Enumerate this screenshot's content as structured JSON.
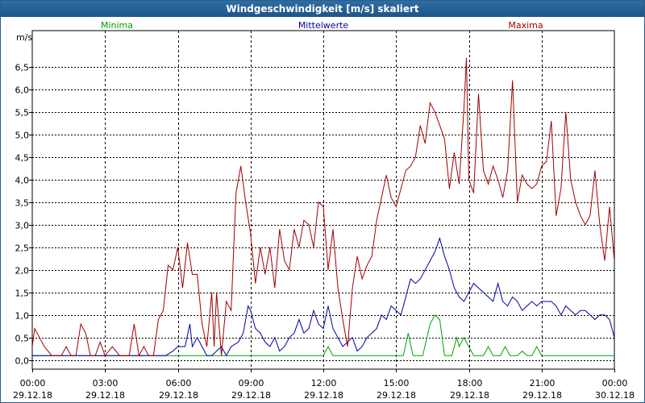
{
  "window": {
    "title": "Windgeschwindigkeit [m/s] skaliert"
  },
  "chart_data": {
    "type": "line",
    "title": "Windgeschwindigkeit [m/s] skaliert",
    "ylabel": "m/s",
    "ylim": [
      -0.2,
      7.3
    ],
    "grid": true,
    "legend_placement": "top",
    "y_ticks": [
      {
        "value": 0.0,
        "label": "0,0"
      },
      {
        "value": 0.5,
        "label": "0,5"
      },
      {
        "value": 1.0,
        "label": "1,0"
      },
      {
        "value": 1.5,
        "label": "1,5"
      },
      {
        "value": 2.0,
        "label": "2,0"
      },
      {
        "value": 2.5,
        "label": "2,5"
      },
      {
        "value": 3.0,
        "label": "3,0"
      },
      {
        "value": 3.5,
        "label": "3,5"
      },
      {
        "value": 4.0,
        "label": "4,0"
      },
      {
        "value": 4.5,
        "label": "4,5"
      },
      {
        "value": 5.0,
        "label": "5,0"
      },
      {
        "value": 5.5,
        "label": "5,5"
      },
      {
        "value": 6.0,
        "label": "6,0"
      },
      {
        "value": 6.5,
        "label": "6,5"
      }
    ],
    "x_ticks": [
      {
        "hour": 0,
        "time": "00:00",
        "date": "29.12.18"
      },
      {
        "hour": 3,
        "time": "03:00",
        "date": "29.12.18"
      },
      {
        "hour": 6,
        "time": "06:00",
        "date": "29.12.18"
      },
      {
        "hour": 9,
        "time": "09:00",
        "date": "29.12.18"
      },
      {
        "hour": 12,
        "time": "12:00",
        "date": "29.12.18"
      },
      {
        "hour": 15,
        "time": "15:00",
        "date": "29.12.18"
      },
      {
        "hour": 18,
        "time": "18:00",
        "date": "29.12.18"
      },
      {
        "hour": 21,
        "time": "21:00",
        "date": "29.12.18"
      },
      {
        "hour": 24,
        "time": "00:00",
        "date": "30.12.18"
      }
    ],
    "series": [
      {
        "name": "Minima",
        "color": "#00a000",
        "points": [
          [
            0,
            0.1
          ],
          [
            6.0,
            0.1
          ],
          [
            12.0,
            0.1
          ],
          [
            12.2,
            0.3
          ],
          [
            12.4,
            0.1
          ],
          [
            15.3,
            0.1
          ],
          [
            15.5,
            0.6
          ],
          [
            15.7,
            0.1
          ],
          [
            16.1,
            0.1
          ],
          [
            16.4,
            0.8
          ],
          [
            16.6,
            1.0
          ],
          [
            16.8,
            0.9
          ],
          [
            17.0,
            0.1
          ],
          [
            17.3,
            0.1
          ],
          [
            17.5,
            0.5
          ],
          [
            17.6,
            0.3
          ],
          [
            17.8,
            0.5
          ],
          [
            18.0,
            0.3
          ],
          [
            18.2,
            0.1
          ],
          [
            18.6,
            0.1
          ],
          [
            18.8,
            0.3
          ],
          [
            19.0,
            0.1
          ],
          [
            19.3,
            0.1
          ],
          [
            19.5,
            0.3
          ],
          [
            19.7,
            0.1
          ],
          [
            20.0,
            0.1
          ],
          [
            20.2,
            0.2
          ],
          [
            20.4,
            0.1
          ],
          [
            20.6,
            0.1
          ],
          [
            20.8,
            0.3
          ],
          [
            21.0,
            0.1
          ],
          [
            24.0,
            0.1
          ]
        ]
      },
      {
        "name": "Mittelwerte",
        "color": "#0000a0",
        "points": [
          [
            0,
            0.1
          ],
          [
            5.5,
            0.1
          ],
          [
            5.8,
            0.2
          ],
          [
            6.0,
            0.3
          ],
          [
            6.3,
            0.3
          ],
          [
            6.5,
            0.8
          ],
          [
            6.6,
            0.3
          ],
          [
            6.8,
            0.5
          ],
          [
            7.0,
            0.3
          ],
          [
            7.2,
            0.1
          ],
          [
            7.4,
            0.1
          ],
          [
            7.6,
            0.2
          ],
          [
            7.8,
            0.3
          ],
          [
            8.0,
            0.1
          ],
          [
            8.2,
            0.3
          ],
          [
            8.5,
            0.4
          ],
          [
            8.7,
            0.6
          ],
          [
            8.9,
            1.2
          ],
          [
            9.0,
            1.1
          ],
          [
            9.2,
            0.7
          ],
          [
            9.4,
            0.6
          ],
          [
            9.6,
            0.4
          ],
          [
            9.8,
            0.3
          ],
          [
            10.0,
            0.5
          ],
          [
            10.2,
            0.2
          ],
          [
            10.4,
            0.3
          ],
          [
            10.6,
            0.5
          ],
          [
            10.8,
            0.6
          ],
          [
            11.0,
            0.9
          ],
          [
            11.2,
            0.6
          ],
          [
            11.4,
            0.7
          ],
          [
            11.6,
            1.1
          ],
          [
            11.8,
            0.8
          ],
          [
            12.0,
            0.7
          ],
          [
            12.2,
            1.2
          ],
          [
            12.4,
            0.7
          ],
          [
            12.6,
            0.5
          ],
          [
            12.8,
            0.3
          ],
          [
            13.0,
            0.4
          ],
          [
            13.2,
            0.5
          ],
          [
            13.4,
            0.2
          ],
          [
            13.6,
            0.3
          ],
          [
            13.8,
            0.5
          ],
          [
            14.0,
            0.6
          ],
          [
            14.2,
            0.7
          ],
          [
            14.4,
            1.0
          ],
          [
            14.6,
            0.9
          ],
          [
            14.8,
            1.2
          ],
          [
            15.0,
            1.1
          ],
          [
            15.2,
            1.0
          ],
          [
            15.4,
            1.4
          ],
          [
            15.6,
            1.8
          ],
          [
            15.8,
            1.7
          ],
          [
            16.0,
            1.8
          ],
          [
            16.2,
            2.0
          ],
          [
            16.4,
            2.2
          ],
          [
            16.6,
            2.4
          ],
          [
            16.8,
            2.7
          ],
          [
            17.0,
            2.3
          ],
          [
            17.2,
            2.0
          ],
          [
            17.4,
            1.6
          ],
          [
            17.6,
            1.4
          ],
          [
            17.8,
            1.3
          ],
          [
            18.0,
            1.5
          ],
          [
            18.2,
            1.7
          ],
          [
            18.4,
            1.6
          ],
          [
            18.6,
            1.5
          ],
          [
            18.8,
            1.4
          ],
          [
            19.0,
            1.3
          ],
          [
            19.2,
            1.7
          ],
          [
            19.4,
            1.3
          ],
          [
            19.6,
            1.2
          ],
          [
            19.8,
            1.4
          ],
          [
            20.0,
            1.3
          ],
          [
            20.2,
            1.1
          ],
          [
            20.4,
            1.2
          ],
          [
            20.6,
            1.3
          ],
          [
            20.8,
            1.2
          ],
          [
            21.0,
            1.3
          ],
          [
            21.2,
            1.3
          ],
          [
            21.4,
            1.3
          ],
          [
            21.6,
            1.2
          ],
          [
            21.8,
            1.0
          ],
          [
            22.0,
            1.2
          ],
          [
            22.2,
            1.1
          ],
          [
            22.4,
            1.0
          ],
          [
            22.6,
            1.1
          ],
          [
            22.8,
            1.1
          ],
          [
            23.0,
            1.0
          ],
          [
            23.2,
            0.9
          ],
          [
            23.4,
            1.0
          ],
          [
            23.6,
            1.0
          ],
          [
            23.8,
            0.9
          ],
          [
            24.0,
            0.5
          ]
        ]
      },
      {
        "name": "Maxima",
        "color": "#a00000",
        "points": [
          [
            0,
            0.3
          ],
          [
            0.1,
            0.7
          ],
          [
            0.3,
            0.5
          ],
          [
            0.5,
            0.3
          ],
          [
            0.8,
            0.1
          ],
          [
            1.2,
            0.1
          ],
          [
            1.4,
            0.3
          ],
          [
            1.6,
            0.1
          ],
          [
            1.8,
            0.1
          ],
          [
            2.0,
            0.8
          ],
          [
            2.2,
            0.6
          ],
          [
            2.4,
            0.1
          ],
          [
            2.6,
            0.1
          ],
          [
            2.8,
            0.4
          ],
          [
            3.0,
            0.1
          ],
          [
            3.3,
            0.3
          ],
          [
            3.6,
            0.1
          ],
          [
            4.0,
            0.1
          ],
          [
            4.2,
            0.8
          ],
          [
            4.4,
            0.1
          ],
          [
            4.6,
            0.3
          ],
          [
            4.8,
            0.1
          ],
          [
            5.0,
            0.1
          ],
          [
            5.2,
            0.9
          ],
          [
            5.4,
            1.1
          ],
          [
            5.6,
            2.1
          ],
          [
            5.8,
            2.0
          ],
          [
            6.0,
            2.5
          ],
          [
            6.2,
            1.6
          ],
          [
            6.4,
            2.6
          ],
          [
            6.6,
            1.9
          ],
          [
            6.8,
            1.9
          ],
          [
            7.0,
            0.8
          ],
          [
            7.2,
            0.3
          ],
          [
            7.4,
            1.5
          ],
          [
            7.5,
            0.3
          ],
          [
            7.6,
            1.5
          ],
          [
            7.8,
            0.1
          ],
          [
            8.0,
            1.3
          ],
          [
            8.2,
            1.1
          ],
          [
            8.4,
            3.7
          ],
          [
            8.6,
            4.3
          ],
          [
            8.8,
            3.5
          ],
          [
            9.0,
            2.8
          ],
          [
            9.2,
            1.7
          ],
          [
            9.4,
            2.5
          ],
          [
            9.6,
            1.9
          ],
          [
            9.8,
            2.5
          ],
          [
            10.0,
            1.6
          ],
          [
            10.2,
            2.9
          ],
          [
            10.4,
            2.2
          ],
          [
            10.6,
            2.0
          ],
          [
            10.8,
            2.9
          ],
          [
            11.0,
            2.5
          ],
          [
            11.2,
            3.1
          ],
          [
            11.4,
            3.0
          ],
          [
            11.6,
            2.5
          ],
          [
            11.8,
            3.5
          ],
          [
            12.0,
            3.4
          ],
          [
            12.2,
            2.0
          ],
          [
            12.4,
            2.9
          ],
          [
            12.6,
            1.6
          ],
          [
            12.8,
            0.9
          ],
          [
            13.0,
            0.3
          ],
          [
            13.2,
            1.6
          ],
          [
            13.4,
            2.3
          ],
          [
            13.6,
            1.8
          ],
          [
            13.8,
            2.1
          ],
          [
            14.0,
            2.3
          ],
          [
            14.2,
            3.1
          ],
          [
            14.4,
            3.6
          ],
          [
            14.6,
            4.1
          ],
          [
            14.8,
            3.6
          ],
          [
            15.0,
            3.4
          ],
          [
            15.2,
            3.8
          ],
          [
            15.4,
            4.2
          ],
          [
            15.6,
            4.3
          ],
          [
            15.8,
            4.5
          ],
          [
            16.0,
            5.2
          ],
          [
            16.2,
            4.8
          ],
          [
            16.4,
            5.7
          ],
          [
            16.6,
            5.5
          ],
          [
            16.8,
            5.2
          ],
          [
            17.0,
            4.9
          ],
          [
            17.2,
            3.8
          ],
          [
            17.4,
            4.6
          ],
          [
            17.6,
            3.9
          ],
          [
            17.8,
            5.6
          ],
          [
            17.9,
            6.7
          ],
          [
            18.0,
            4.0
          ],
          [
            18.2,
            3.7
          ],
          [
            18.4,
            5.9
          ],
          [
            18.6,
            4.2
          ],
          [
            18.8,
            3.9
          ],
          [
            19.0,
            4.3
          ],
          [
            19.2,
            4.0
          ],
          [
            19.4,
            3.6
          ],
          [
            19.6,
            4.2
          ],
          [
            19.8,
            6.2
          ],
          [
            20.0,
            3.5
          ],
          [
            20.2,
            4.1
          ],
          [
            20.4,
            3.9
          ],
          [
            20.6,
            3.8
          ],
          [
            20.8,
            3.9
          ],
          [
            21.0,
            4.3
          ],
          [
            21.2,
            4.4
          ],
          [
            21.4,
            5.3
          ],
          [
            21.6,
            3.2
          ],
          [
            21.8,
            3.8
          ],
          [
            22.0,
            5.5
          ],
          [
            22.2,
            4.0
          ],
          [
            22.4,
            3.5
          ],
          [
            22.6,
            3.2
          ],
          [
            22.8,
            3.0
          ],
          [
            23.0,
            3.2
          ],
          [
            23.2,
            4.2
          ],
          [
            23.4,
            3.0
          ],
          [
            23.6,
            2.2
          ],
          [
            23.8,
            3.4
          ],
          [
            24.0,
            2.2
          ]
        ]
      }
    ]
  }
}
